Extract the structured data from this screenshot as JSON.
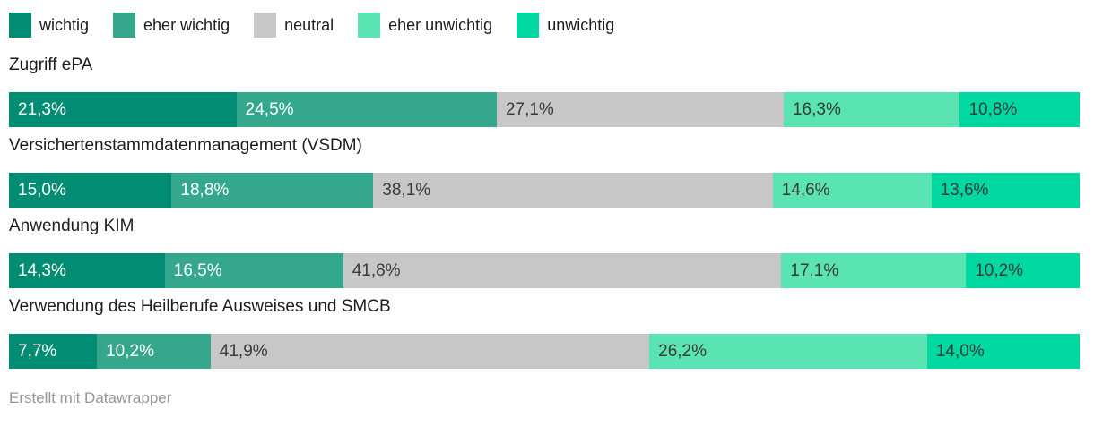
{
  "legend": {
    "items": [
      {
        "label": "wichtig",
        "color": "#008d73",
        "text_color": "#ffffff"
      },
      {
        "label": "eher wichtig",
        "color": "#34a78c",
        "text_color": "#ffffff"
      },
      {
        "label": "neutral",
        "color": "#c7c7c7",
        "text_color": "#3a3a3a"
      },
      {
        "label": "eher unwichtig",
        "color": "#5ae3b3",
        "text_color": "#3a3a3a"
      },
      {
        "label": "unwichtig",
        "color": "#00d8a2",
        "text_color": "#3a3a3a"
      }
    ]
  },
  "chart_data": {
    "type": "bar",
    "variant": "horizontal_stacked",
    "unit": "%",
    "decimal_separator": ",",
    "legend_position": "top",
    "grid": false,
    "series_names": [
      "wichtig",
      "eher wichtig",
      "neutral",
      "eher unwichtig",
      "unwichtig"
    ],
    "categories": [
      "Zugriff ePA",
      "Versichertenstammdatenmanagement (VSDM)",
      "Anwendung KIM",
      "Verwendung des Heilberufe Ausweises und SMCB"
    ],
    "rows": [
      {
        "label": "Zugriff ePA",
        "values": [
          21.3,
          24.5,
          27.1,
          16.3,
          10.8
        ],
        "display": [
          "21,3%",
          "24,5%",
          "27,1%",
          "16,3%",
          "10,8%"
        ]
      },
      {
        "label": "Versichertenstammdatenmanagement (VSDM)",
        "values": [
          15.0,
          18.8,
          38.1,
          14.6,
          13.6
        ],
        "display": [
          "15,0%",
          "18,8%",
          "38,1%",
          "14,6%",
          "13,6%"
        ]
      },
      {
        "label": "Anwendung KIM",
        "values": [
          14.3,
          16.5,
          41.8,
          17.1,
          10.2
        ],
        "display": [
          "14,3%",
          "16,5%",
          "41,8%",
          "17,1%",
          "10,2%"
        ]
      },
      {
        "label": "Verwendung des Heilberufe Ausweises und SMCB",
        "values": [
          7.7,
          10.2,
          41.9,
          26.2,
          14.0
        ],
        "display": [
          "7,7%",
          "10,2%",
          "41,9%",
          "26,2%",
          "14,0%"
        ]
      }
    ]
  },
  "footer": {
    "credit": "Erstellt mit Datawrapper"
  },
  "colors": {
    "background": "#ffffff",
    "category_label_text": "#1d1d1d",
    "value_text_dark": "#3a3a3a",
    "value_text_light": "#ffffff",
    "footer_text": "#969696"
  }
}
